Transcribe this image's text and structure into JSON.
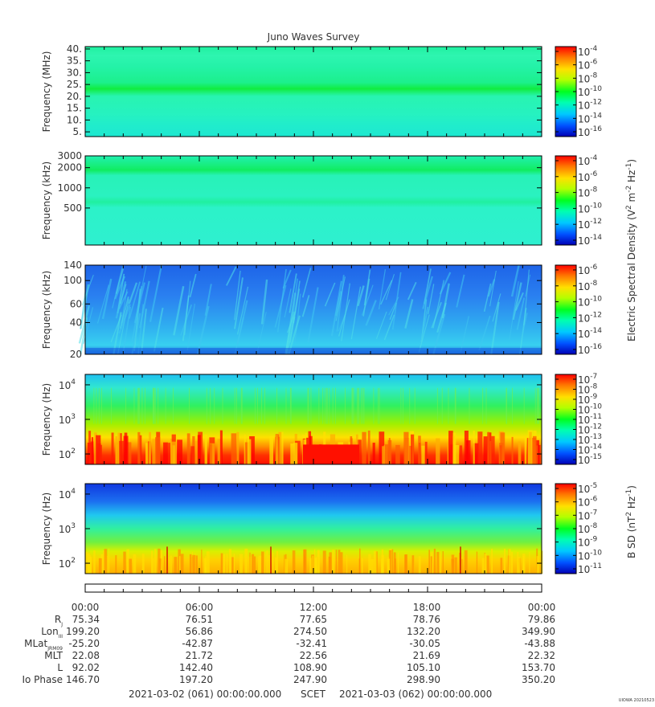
{
  "chart_data": {
    "title": "Juno Waves Survey",
    "type": "heatmap",
    "panels": [
      {
        "name": "hfr-high",
        "ylabel": "Frequency (MHz)",
        "yticks": [
          "40.",
          "35.",
          "30.",
          "25.",
          "20.",
          "15.",
          "10.",
          "5."
        ],
        "yvalues": [
          40,
          35,
          30,
          25,
          20,
          15,
          10,
          5
        ],
        "ylim": [
          3,
          41
        ],
        "yscale": "linear",
        "colorbar_ticks": [
          "-4",
          "-6",
          "-8",
          "-10",
          "-12",
          "-14",
          "-16"
        ]
      },
      {
        "name": "hfr-low",
        "ylabel": "Frequency (kHz)",
        "yticks": [
          "3000",
          "2000",
          "1000",
          "500"
        ],
        "yvalues": [
          3000,
          2000,
          1000,
          500
        ],
        "ylim": [
          140,
          3000
        ],
        "yscale": "log",
        "colorbar_ticks": [
          "-4",
          "-6",
          "-8",
          "-10",
          "-12",
          "-14"
        ]
      },
      {
        "name": "lfr-high",
        "ylabel": "Frequency (kHz)",
        "yticks": [
          "140",
          "100",
          "60",
          "40",
          "20"
        ],
        "yvalues": [
          140,
          100,
          60,
          40,
          20
        ],
        "ylim": [
          20,
          140
        ],
        "yscale": "log",
        "colorbar_ticks": [
          "-6",
          "-8",
          "-10",
          "-12",
          "-14",
          "-16"
        ]
      },
      {
        "name": "lfr-low-e",
        "ylabel": "Frequency (Hz)",
        "yticks_exp": [
          "4",
          "3",
          "2"
        ],
        "yvalues": [
          10000,
          1000,
          100
        ],
        "ylim": [
          50,
          20000
        ],
        "yscale": "log",
        "colorbar_ticks": [
          "-7",
          "-8",
          "-9",
          "-10",
          "-11",
          "-12",
          "-13",
          "-14",
          "-15"
        ]
      },
      {
        "name": "lfr-low-b",
        "ylabel": "Frequency (Hz)",
        "yticks_exp": [
          "4",
          "3",
          "2"
        ],
        "yvalues": [
          10000,
          1000,
          100
        ],
        "ylim": [
          50,
          20000
        ],
        "yscale": "log",
        "colorbar_ticks": [
          "-5",
          "-6",
          "-7",
          "-8",
          "-9",
          "-10",
          "-11"
        ]
      }
    ],
    "colorbar_labels": {
      "electric": "Electric Spectral Density (V",
      "magnetic": "B SD (nT"
    },
    "x_ticks": [
      "00:00",
      "06:00",
      "12:00",
      "18:00",
      "00:00"
    ],
    "ephemeris": [
      {
        "label": "R",
        "sub": "J",
        "values": [
          "75.34",
          "76.51",
          "77.65",
          "78.76",
          "79.86"
        ]
      },
      {
        "label": "Lon",
        "sub": "III",
        "values": [
          "199.20",
          "56.86",
          "274.50",
          "132.20",
          "349.90"
        ]
      },
      {
        "label": "MLat",
        "sub": "JRM09",
        "values": [
          "-25.20",
          "-42.87",
          "-32.41",
          "-30.05",
          "-43.88"
        ]
      },
      {
        "label": "MLT",
        "sub": "",
        "values": [
          "22.08",
          "21.72",
          "22.56",
          "21.69",
          "22.32"
        ]
      },
      {
        "label": "L",
        "sub": "",
        "values": [
          "92.02",
          "142.40",
          "108.90",
          "105.10",
          "153.70"
        ]
      },
      {
        "label": "Io Phase",
        "sub": "",
        "values": [
          "146.70",
          "197.20",
          "247.90",
          "298.90",
          "350.20"
        ]
      }
    ],
    "time_range": {
      "start": "2021-03-02 (061) 00:00:00.000",
      "label": "SCET",
      "end": "2021-03-03 (062) 00:00:00.000"
    },
    "credit": "UIOWA 20210523"
  }
}
